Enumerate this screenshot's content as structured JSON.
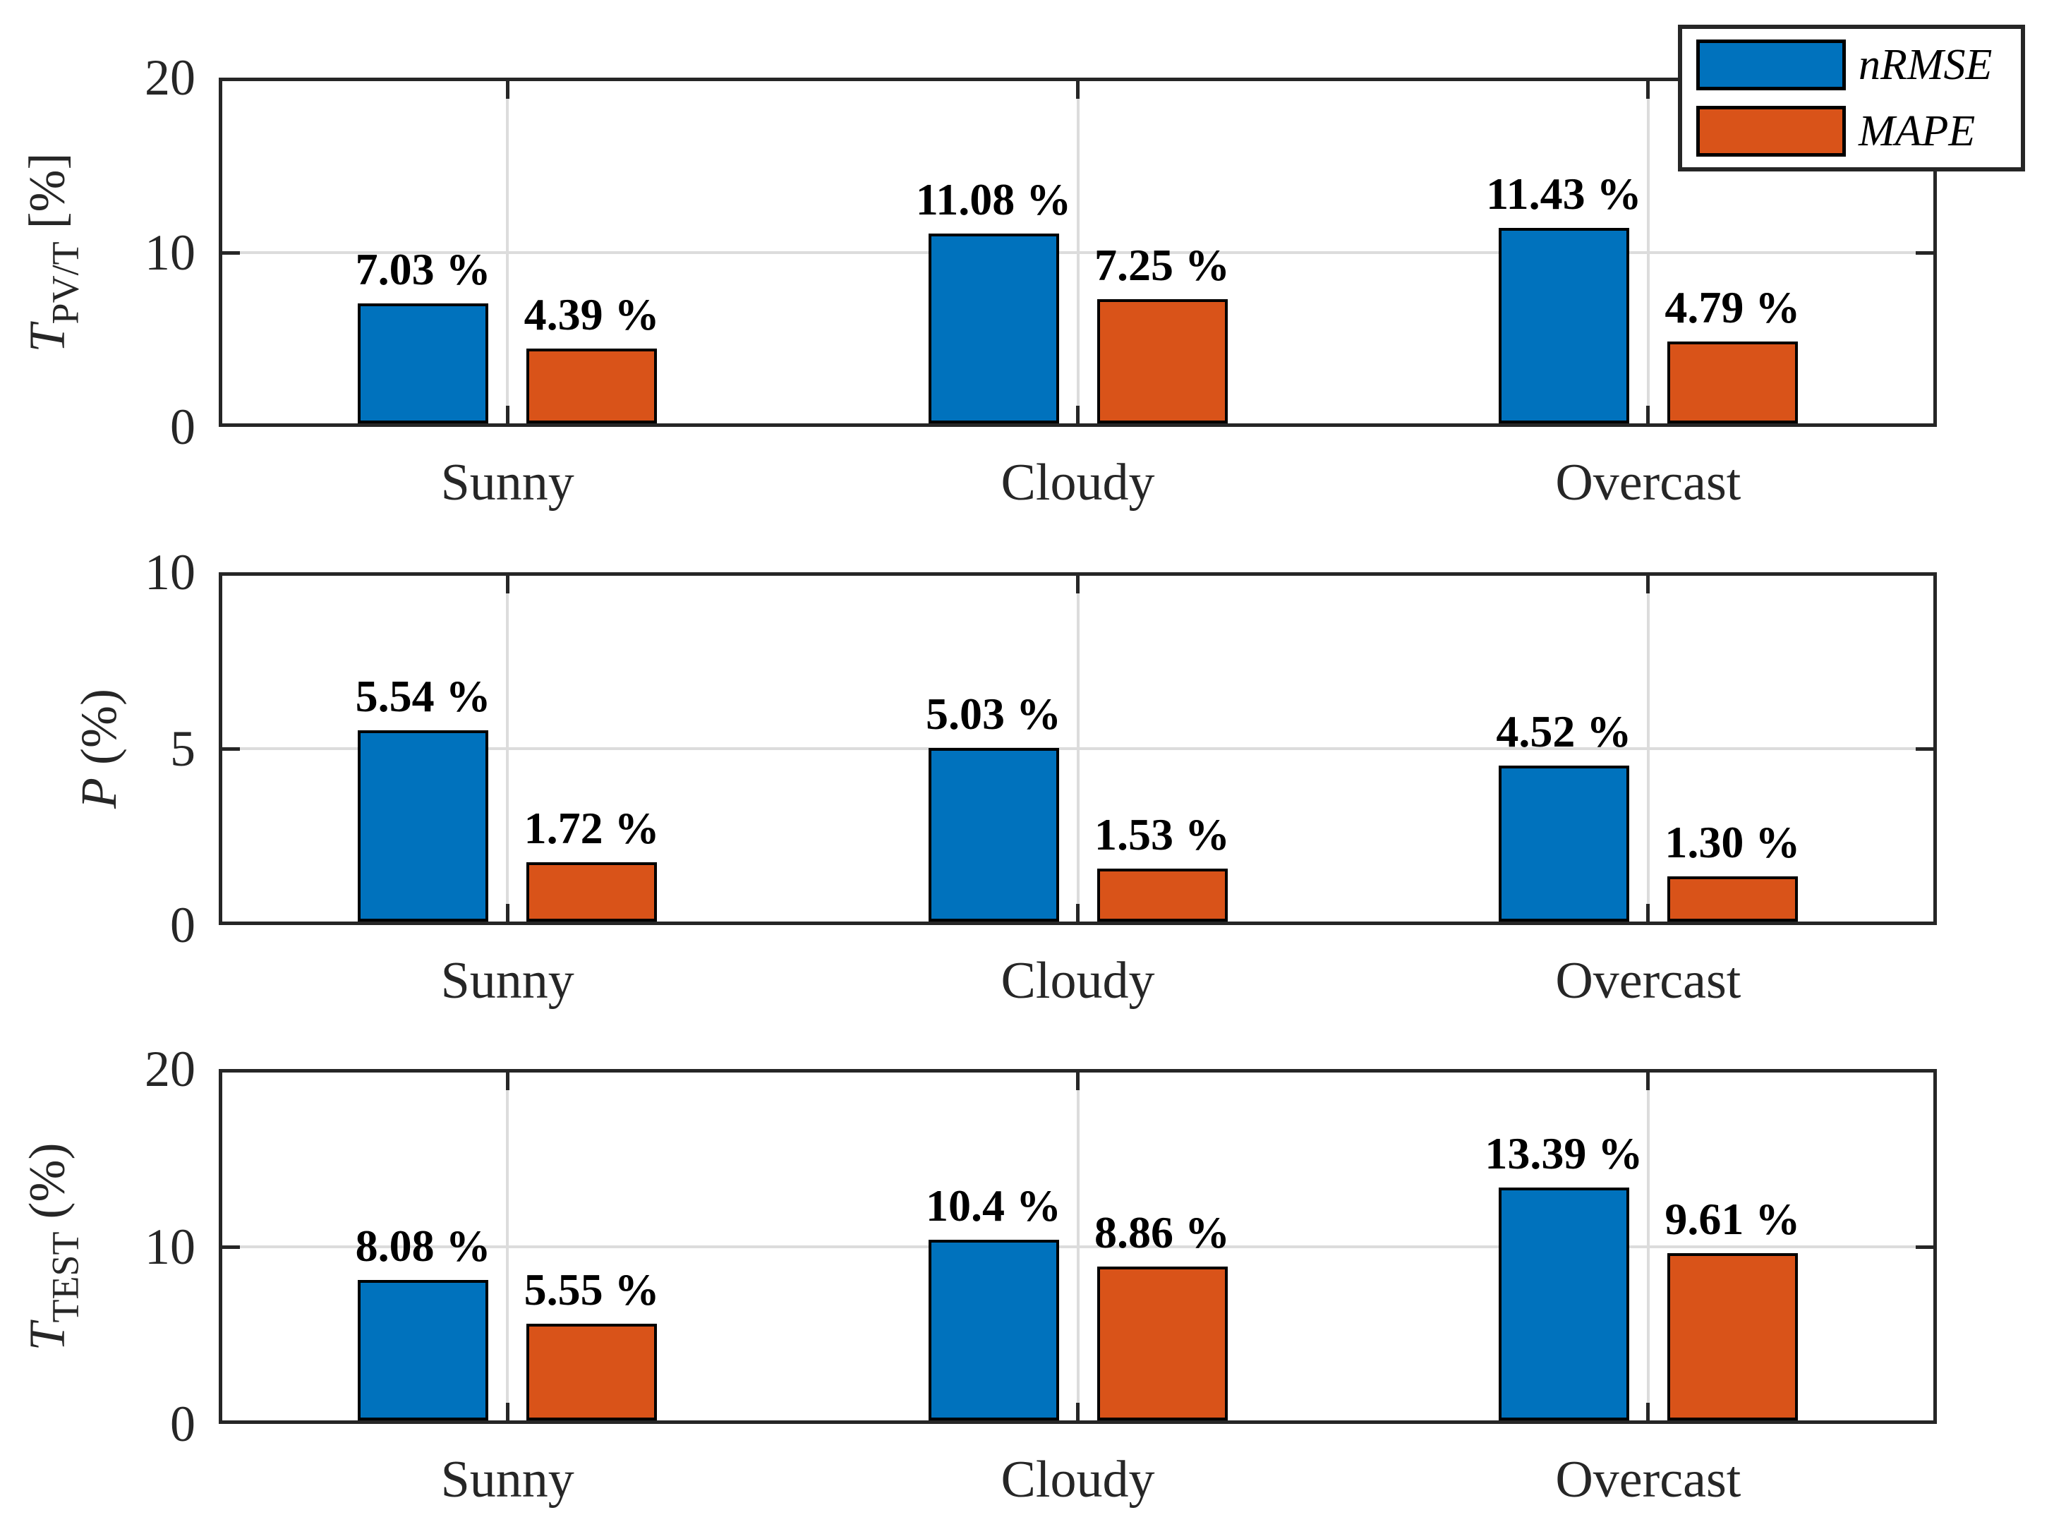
{
  "figure": {
    "background": "#ffffff"
  },
  "colors": {
    "nrmse": "#0072BD",
    "mape": "#D95319",
    "axis": "#262626",
    "grid": "#dcdcdc"
  },
  "legend": {
    "position": "top-right",
    "entries": [
      {
        "label": "nRMSE",
        "color": "#0072BD"
      },
      {
        "label": "MAPE",
        "color": "#D95319"
      }
    ]
  },
  "chart_data": [
    {
      "type": "bar",
      "title": "",
      "xlabel": "",
      "ylabel": "T_{PV/T} [%]",
      "ylabel_parts": {
        "var": "T",
        "sub": "PV/T",
        "unit": " [%]"
      },
      "ylim": [
        0,
        20
      ],
      "yticks": [
        0,
        10,
        20
      ],
      "categories": [
        "Sunny",
        "Cloudy",
        "Overcast"
      ],
      "grid": true,
      "legend_position": "top-right",
      "series": [
        {
          "name": "nRMSE",
          "color": "#0072BD",
          "values": [
            7.03,
            11.08,
            11.43
          ],
          "data_labels": [
            "7.03 %",
            "11.08 %",
            "11.43 %"
          ]
        },
        {
          "name": "MAPE",
          "color": "#D95319",
          "values": [
            4.39,
            7.25,
            4.79
          ],
          "data_labels": [
            "4.39 %",
            "7.25 %",
            "4.79 %"
          ]
        }
      ]
    },
    {
      "type": "bar",
      "title": "",
      "xlabel": "",
      "ylabel": "P (%)",
      "ylabel_parts": {
        "var": "P",
        "sub": "",
        "unit": " (%)"
      },
      "ylim": [
        0,
        10
      ],
      "yticks": [
        0,
        5,
        10
      ],
      "categories": [
        "Sunny",
        "Cloudy",
        "Overcast"
      ],
      "grid": true,
      "legend_position": "none",
      "series": [
        {
          "name": "nRMSE",
          "color": "#0072BD",
          "values": [
            5.54,
            5.03,
            4.52
          ],
          "data_labels": [
            "5.54 %",
            "5.03 %",
            "4.52 %"
          ]
        },
        {
          "name": "MAPE",
          "color": "#D95319",
          "values": [
            1.72,
            1.53,
            1.3
          ],
          "data_labels": [
            "1.72 %",
            "1.53 %",
            "1.30 %"
          ]
        }
      ]
    },
    {
      "type": "bar",
      "title": "",
      "xlabel": "",
      "ylabel": "T_{TEST} (%)",
      "ylabel_parts": {
        "var": "T",
        "sub": "TEST",
        "unit": " (%)"
      },
      "ylim": [
        0,
        20
      ],
      "yticks": [
        0,
        10,
        20
      ],
      "categories": [
        "Sunny",
        "Cloudy",
        "Overcast"
      ],
      "grid": true,
      "legend_position": "none",
      "series": [
        {
          "name": "nRMSE",
          "color": "#0072BD",
          "values": [
            8.08,
            10.4,
            13.39
          ],
          "data_labels": [
            "8.08 %",
            "10.4 %",
            "13.39 %"
          ]
        },
        {
          "name": "MAPE",
          "color": "#D95319",
          "values": [
            5.55,
            8.86,
            9.61
          ],
          "data_labels": [
            "5.55 %",
            "8.86 %",
            "9.61 %"
          ]
        }
      ]
    }
  ]
}
